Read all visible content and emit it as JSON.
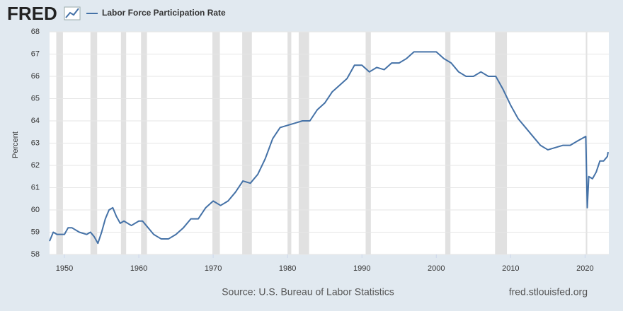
{
  "logo": "FRED",
  "chart_data": {
    "type": "line",
    "ylabel": "Percent",
    "source": "Source: U.S. Bureau of Labor Statistics",
    "site": "fred.stlouisfed.org",
    "xlim": [
      1948.0,
      2023.2
    ],
    "ylim": [
      58,
      68
    ],
    "xticks": [
      1950,
      1960,
      1970,
      1980,
      1990,
      2000,
      2010,
      2020
    ],
    "yticks": [
      58,
      59,
      60,
      61,
      62,
      63,
      64,
      65,
      66,
      67,
      68
    ],
    "grid": true,
    "recessions": [
      [
        1948.9,
        1949.8
      ],
      [
        1953.5,
        1954.4
      ],
      [
        1957.6,
        1958.3
      ],
      [
        1960.3,
        1961.1
      ],
      [
        1969.9,
        1970.9
      ],
      [
        1973.9,
        1975.2
      ],
      [
        1980.0,
        1980.5
      ],
      [
        1981.5,
        1982.9
      ],
      [
        1990.5,
        1991.2
      ],
      [
        2001.2,
        2001.9
      ],
      [
        2007.9,
        2009.5
      ],
      [
        2020.1,
        2020.3
      ]
    ],
    "x": [
      1948.0,
      1948.5,
      1949,
      1950,
      1950.5,
      1951,
      1952,
      1953,
      1953.5,
      1954,
      1954.5,
      1955,
      1955.5,
      1956,
      1956.5,
      1957,
      1957.5,
      1958,
      1959,
      1960,
      1960.5,
      1961,
      1962,
      1962.5,
      1963,
      1964,
      1965,
      1966,
      1967,
      1968,
      1969,
      1970,
      1971,
      1972,
      1973,
      1974,
      1975,
      1976,
      1977,
      1978,
      1979,
      1980,
      1981,
      1982,
      1983,
      1984,
      1985,
      1986,
      1987,
      1988,
      1989,
      1990,
      1991,
      1992,
      1993,
      1994,
      1995,
      1996,
      1997,
      1998,
      1999,
      2000,
      2001,
      2002,
      2003,
      2004,
      2005,
      2006,
      2007,
      2008,
      2009,
      2010,
      2011,
      2012,
      2013,
      2014,
      2015,
      2016,
      2017,
      2018,
      2019,
      2020.1,
      2020.3,
      2020.5,
      2021,
      2021.5,
      2022,
      2022.5,
      2023,
      2023.1
    ],
    "series": [
      {
        "name": "Labor Force Participation Rate",
        "color": "#4572a7",
        "values": [
          58.6,
          59.0,
          58.9,
          58.9,
          59.2,
          59.2,
          59.0,
          58.9,
          59.0,
          58.8,
          58.5,
          59.0,
          59.6,
          60.0,
          60.1,
          59.7,
          59.4,
          59.5,
          59.3,
          59.5,
          59.5,
          59.3,
          58.9,
          58.8,
          58.7,
          58.7,
          58.9,
          59.2,
          59.6,
          59.6,
          60.1,
          60.4,
          60.2,
          60.4,
          60.8,
          61.3,
          61.2,
          61.6,
          62.3,
          63.2,
          63.7,
          63.8,
          63.9,
          64.0,
          64.0,
          64.5,
          64.8,
          65.3,
          65.6,
          65.9,
          66.5,
          66.5,
          66.2,
          66.4,
          66.3,
          66.6,
          66.6,
          66.8,
          67.1,
          67.1,
          67.1,
          67.1,
          66.8,
          66.6,
          66.2,
          66.0,
          66.0,
          66.2,
          66.0,
          66.0,
          65.4,
          64.7,
          64.1,
          63.7,
          63.3,
          62.9,
          62.7,
          62.8,
          62.9,
          62.9,
          63.1,
          63.3,
          60.1,
          61.5,
          61.4,
          61.7,
          62.2,
          62.2,
          62.4,
          62.6
        ]
      }
    ]
  }
}
